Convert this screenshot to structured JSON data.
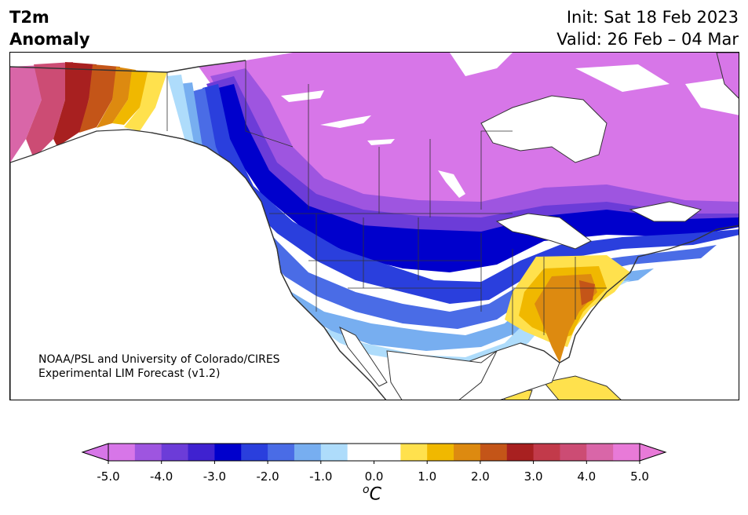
{
  "title": {
    "left_line1": "T2m",
    "left_line2": "Anomaly",
    "init": "Init: Sat 18 Feb 2023",
    "valid": "Valid: 26 Feb – 04 Mar"
  },
  "credit": {
    "line1": "NOAA/PSL and University of Colorado/CIRES",
    "line2": "Experimental LIM Forecast (v1.2)"
  },
  "colorbar": {
    "unit_sup": "o",
    "unit_main": "C",
    "ticks": [
      "-5.0",
      "-4.0",
      "-3.0",
      "-2.0",
      "-1.0",
      "0.0",
      "1.0",
      "2.0",
      "3.0",
      "4.0",
      "5.0"
    ],
    "colors": [
      "#d776e8",
      "#9e55e0",
      "#6c3cd8",
      "#3f22d0",
      "#0000cc",
      "#2a3fdd",
      "#4a6ce6",
      "#77aef0",
      "#aedcfb",
      "#ffffff",
      "#ffffff",
      "#ffe14d",
      "#f0b800",
      "#dd8a10",
      "#c45518",
      "#a82020",
      "#c23a4a",
      "#cc4c74",
      "#d966a8",
      "#e87ad8"
    ]
  },
  "map": {
    "region": "North America",
    "variable": "2 m temperature anomaly",
    "colors": {
      "strong_cold": "#d776e8",
      "cold_mid": "#0000cc",
      "cold_light": "#aedcfb",
      "warm_light": "#ffe14d",
      "warm_mid": "#dd8a10",
      "warm_strong": "#a82020",
      "land_outline": "#333333"
    }
  }
}
